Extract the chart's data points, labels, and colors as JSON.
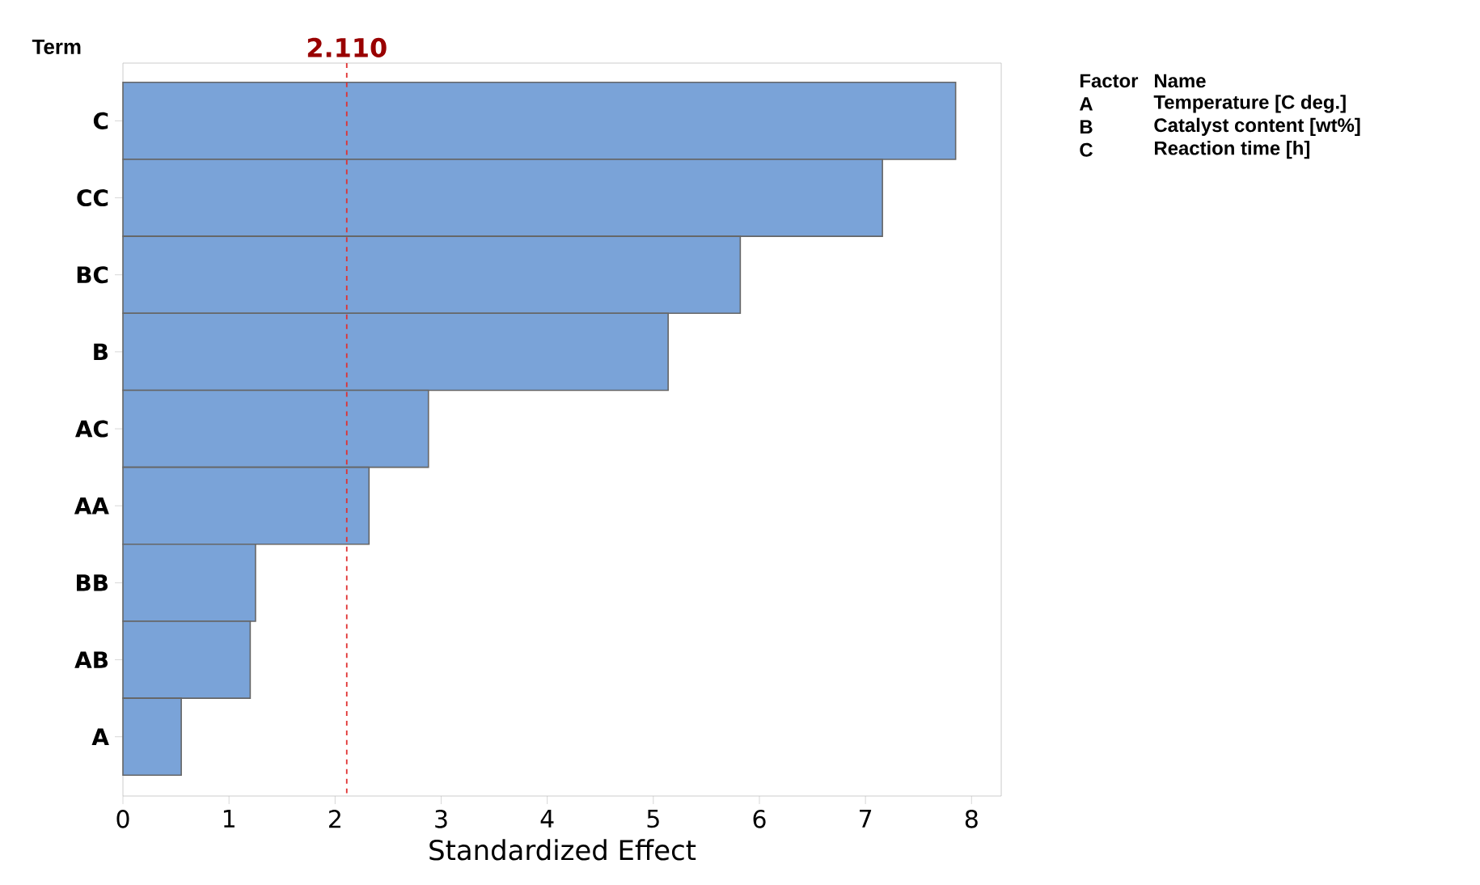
{
  "chart_data": {
    "type": "bar",
    "orientation": "horizontal",
    "ylabel": "Term",
    "xlabel": "Standardized Effect",
    "categories": [
      "C",
      "CC",
      "BC",
      "B",
      "AC",
      "AA",
      "BB",
      "AB",
      "A"
    ],
    "values": [
      7.85,
      7.16,
      5.82,
      5.14,
      2.88,
      2.32,
      1.25,
      1.2,
      0.55
    ],
    "color": "#7aa3d8",
    "xlim": [
      0,
      8.28
    ],
    "xticks": [
      0,
      1,
      2,
      3,
      4,
      5,
      6,
      7,
      8
    ],
    "ref_lines": [
      {
        "axis": "x",
        "value": 2.11,
        "label": "2.110",
        "color": "#e03030",
        "line_style": "dashed"
      }
    ],
    "annotations": [
      "Factor",
      "Name",
      "A",
      "Temperature [C deg.]",
      "B",
      "Catalyst content [wt%]",
      "C",
      "Reaction time [h]"
    ],
    "grid": false
  }
}
